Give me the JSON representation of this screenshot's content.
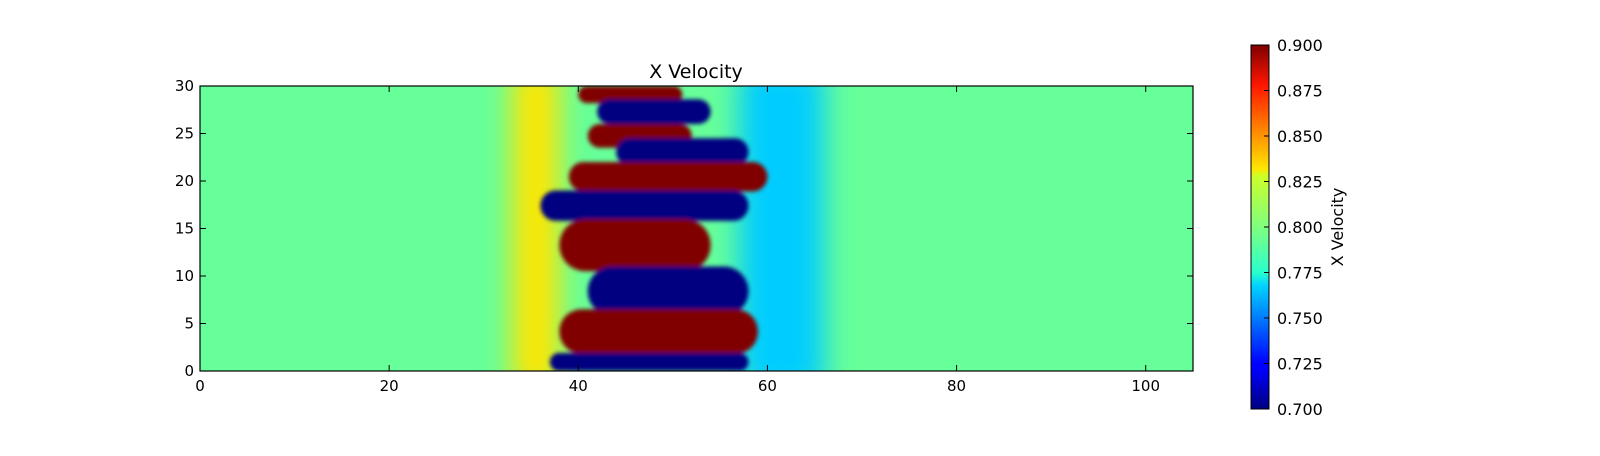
{
  "chart_data": {
    "type": "heatmap",
    "title": "X Velocity",
    "xlabel": "",
    "ylabel": "",
    "xlim": [
      0,
      105
    ],
    "ylim": [
      0,
      30
    ],
    "x_ticks": [
      0,
      20,
      40,
      60,
      80,
      100
    ],
    "y_ticks": [
      0,
      5,
      10,
      15,
      20,
      25,
      30
    ],
    "grid": false,
    "colormap": "jet",
    "colorbar": {
      "label": "X Velocity",
      "range": [
        0.7,
        0.9
      ],
      "ticks": [
        "0.700",
        "0.725",
        "0.750",
        "0.775",
        "0.800",
        "0.825",
        "0.850",
        "0.875",
        "0.900"
      ],
      "position": "right"
    },
    "background_value": 0.795,
    "field": {
      "description_free": true,
      "blobs": [
        {
          "x": [
            40,
            51
          ],
          "y": [
            28.2,
            30
          ],
          "value": 0.9
        },
        {
          "x": [
            42,
            54
          ],
          "y": [
            26,
            28.6
          ],
          "value": 0.7
        },
        {
          "x": [
            41,
            52
          ],
          "y": [
            23.5,
            26
          ],
          "value": 0.9
        },
        {
          "x": [
            44,
            58
          ],
          "y": [
            21.6,
            24.5
          ],
          "value": 0.7
        },
        {
          "x": [
            39,
            60
          ],
          "y": [
            18.9,
            22
          ],
          "value": 0.9
        },
        {
          "x": [
            36,
            58
          ],
          "y": [
            15.8,
            19
          ],
          "value": 0.7
        },
        {
          "x": [
            38,
            54
          ],
          "y": [
            10.5,
            16
          ],
          "value": 0.9
        },
        {
          "x": [
            41,
            58
          ],
          "y": [
            5.8,
            11
          ],
          "value": 0.7
        },
        {
          "x": [
            38,
            59
          ],
          "y": [
            1.8,
            6.5
          ],
          "value": 0.9
        },
        {
          "x": [
            37,
            58
          ],
          "y": [
            0,
            1.9
          ],
          "value": 0.7
        }
      ],
      "front_left_x": 33,
      "front_right_x": 66
    }
  }
}
